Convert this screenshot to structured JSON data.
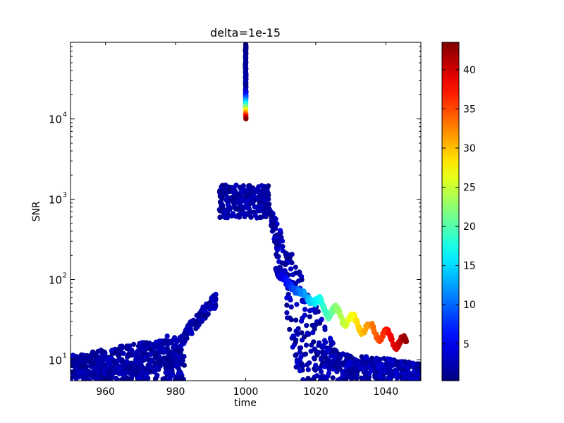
{
  "chart_data": {
    "type": "scatter",
    "title": "delta=1e-15",
    "xlabel": "time",
    "ylabel": "SNR",
    "xlim": [
      950,
      1050
    ],
    "ylim": [
      5.5,
      90000
    ],
    "yscale": "log",
    "x_ticks": [
      960,
      980,
      1000,
      1020,
      1040
    ],
    "x_tick_labels": [
      "960",
      "980",
      "1000",
      "1020",
      "1040"
    ],
    "y_ticks": [
      10,
      100,
      1000,
      10000
    ],
    "y_tick_labels": [
      "10",
      "10",
      "10",
      "10"
    ],
    "y_tick_exponents": [
      "1",
      "2",
      "3",
      "4"
    ],
    "grid": false,
    "colormap": "jet",
    "colorbar": {
      "range": [
        0.3,
        43.5
      ],
      "ticks": [
        5,
        10,
        15,
        20,
        25,
        30,
        35,
        40
      ],
      "tick_labels": [
        "5",
        "10",
        "15",
        "20",
        "25",
        "30",
        "35",
        "40"
      ]
    },
    "clusters": [
      {
        "name": "early-band",
        "x_range": [
          950,
          982.5
        ],
        "y_floor": 5.5,
        "y_ceiling_start": 11.5,
        "y_ceiling_end": 22,
        "color_value_range": [
          0.5,
          3
        ]
      },
      {
        "name": "rising-edge",
        "x_range": [
          982.5,
          991.5
        ],
        "y_range": [
          22,
          60
        ],
        "color_value_range": [
          0.5,
          3
        ]
      },
      {
        "name": "plateau",
        "x_range": [
          992.5,
          1006.5
        ],
        "y_range": [
          580,
          1500
        ],
        "color_value_range": [
          0.5,
          3
        ]
      },
      {
        "name": "spike",
        "x": 1000,
        "y_range": [
          10000,
          85000
        ],
        "color_value_range": [
          0.5,
          43
        ]
      },
      {
        "name": "decay-blue",
        "x_range": [
          1006.5,
          1050
        ],
        "y_range": [
          5.5,
          900
        ],
        "color_value_range": [
          0.5,
          4
        ]
      },
      {
        "name": "decay-colored-tail",
        "x_range": [
          1008.5,
          1046
        ],
        "y_range": [
          16,
          150
        ],
        "color_value_range": [
          2,
          43
        ]
      }
    ]
  }
}
